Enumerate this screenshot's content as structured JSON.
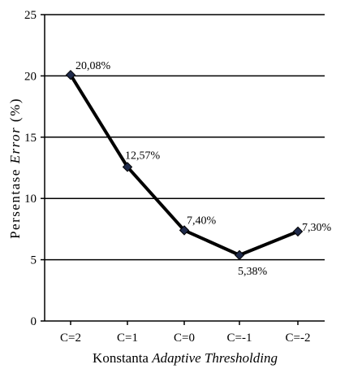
{
  "chart_data": {
    "type": "line",
    "categories": [
      "C=2",
      "C=1",
      "C=0",
      "C=-1",
      "C=-2"
    ],
    "values": [
      20.08,
      12.57,
      7.4,
      5.38,
      7.3
    ],
    "data_labels": [
      "20,08%",
      "12,57%",
      "7,40%",
      "5,38%",
      "7,30%"
    ],
    "y_ticks": [
      "0",
      "5",
      "10",
      "15",
      "20",
      "25"
    ],
    "ylim": [
      0,
      25
    ],
    "ylabel_plain": "Persentase ",
    "ylabel_italic": "Error",
    "ylabel_suffix": " (%)",
    "xlabel_plain": "Konstanta ",
    "xlabel_italic": "Adaptive Thresholding",
    "grid": "horizontal",
    "marker": "diamond",
    "line_color": "#000000",
    "marker_color": "#1f2a4a"
  }
}
